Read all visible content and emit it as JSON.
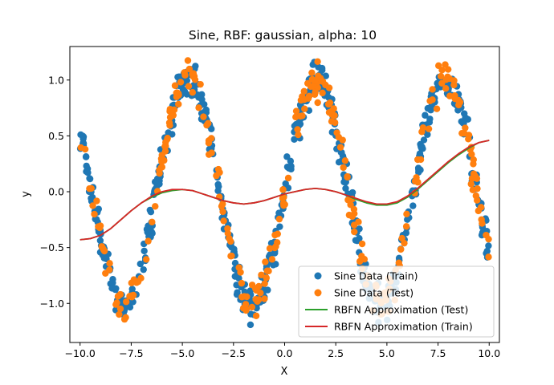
{
  "chart_data": {
    "type": "scatter",
    "title": "Sine, RBF: gaussian, alpha: 10",
    "xlabel": "X",
    "ylabel": "y",
    "xlim": [
      -10.5,
      10.5
    ],
    "ylim": [
      -1.35,
      1.3
    ],
    "x_ticks": [
      -10.0,
      -7.5,
      -5.0,
      -2.5,
      0.0,
      2.5,
      5.0,
      7.5,
      10.0
    ],
    "x_tick_labels": [
      "−10.0",
      "−7.5",
      "−5.0",
      "−2.5",
      "0.0",
      "2.5",
      "5.0",
      "7.5",
      "10.0"
    ],
    "y_ticks": [
      -1.0,
      -0.5,
      0.0,
      0.5,
      1.0
    ],
    "y_tick_labels": [
      "−1.0",
      "−0.5",
      "0.0",
      "0.5",
      "1.0"
    ],
    "grid": false,
    "legend_position": "lower-right",
    "scatter_generator": {
      "function": "y = sin(x) + noise",
      "x_range": [
        -10,
        10
      ],
      "train_points": 600,
      "test_points": 300,
      "noise_amplitude": 0.18
    },
    "series": [
      {
        "name": "Sine Data (Train)",
        "kind": "scatter",
        "color": "#1f77b4",
        "seed": 7
      },
      {
        "name": "Sine Data (Test)",
        "kind": "scatter",
        "color": "#ff7f0e",
        "seed": 13
      },
      {
        "name": "RBFN Approximation (Test)",
        "kind": "line",
        "color": "#2ca02c",
        "x": [
          -10,
          -9.5,
          -9,
          -8.5,
          -8,
          -7.5,
          -7,
          -6.5,
          -6,
          -5.5,
          -5,
          -4.5,
          -4,
          -3.5,
          -3,
          -2.5,
          -2,
          -1.5,
          -1,
          -0.5,
          0,
          0.5,
          1,
          1.5,
          2,
          2.5,
          3,
          3.5,
          4,
          4.5,
          5,
          5.5,
          6,
          6.5,
          7,
          7.5,
          8,
          8.5,
          9,
          9.5,
          10
        ],
        "y": [
          -0.43,
          -0.42,
          -0.39,
          -0.33,
          -0.25,
          -0.17,
          -0.1,
          -0.05,
          -0.01,
          0.01,
          0.02,
          0.01,
          -0.02,
          -0.05,
          -0.08,
          -0.1,
          -0.11,
          -0.1,
          -0.08,
          -0.05,
          -0.02,
          0.0,
          0.02,
          0.03,
          0.02,
          0.0,
          -0.03,
          -0.07,
          -0.1,
          -0.12,
          -0.12,
          -0.1,
          -0.05,
          0.02,
          0.1,
          0.18,
          0.26,
          0.33,
          0.39,
          0.44,
          0.46
        ]
      },
      {
        "name": "RBFN Approximation (Train)",
        "kind": "line",
        "color": "#d62728",
        "x": [
          -10,
          -9.5,
          -9,
          -8.5,
          -8,
          -7.5,
          -7,
          -6.5,
          -6,
          -5.5,
          -5,
          -4.5,
          -4,
          -3.5,
          -3,
          -2.5,
          -2,
          -1.5,
          -1,
          -0.5,
          0,
          0.5,
          1,
          1.5,
          2,
          2.5,
          3,
          3.5,
          4,
          4.5,
          5,
          5.5,
          6,
          6.5,
          7,
          7.5,
          8,
          8.5,
          9,
          9.5,
          10
        ],
        "y": [
          -0.43,
          -0.42,
          -0.39,
          -0.33,
          -0.25,
          -0.17,
          -0.1,
          -0.04,
          0.0,
          0.02,
          0.02,
          0.01,
          -0.02,
          -0.05,
          -0.08,
          -0.1,
          -0.11,
          -0.1,
          -0.08,
          -0.05,
          -0.02,
          0.0,
          0.02,
          0.03,
          0.02,
          0.0,
          -0.03,
          -0.06,
          -0.09,
          -0.11,
          -0.11,
          -0.09,
          -0.04,
          0.03,
          0.11,
          0.19,
          0.27,
          0.34,
          0.4,
          0.44,
          0.46
        ]
      }
    ]
  }
}
